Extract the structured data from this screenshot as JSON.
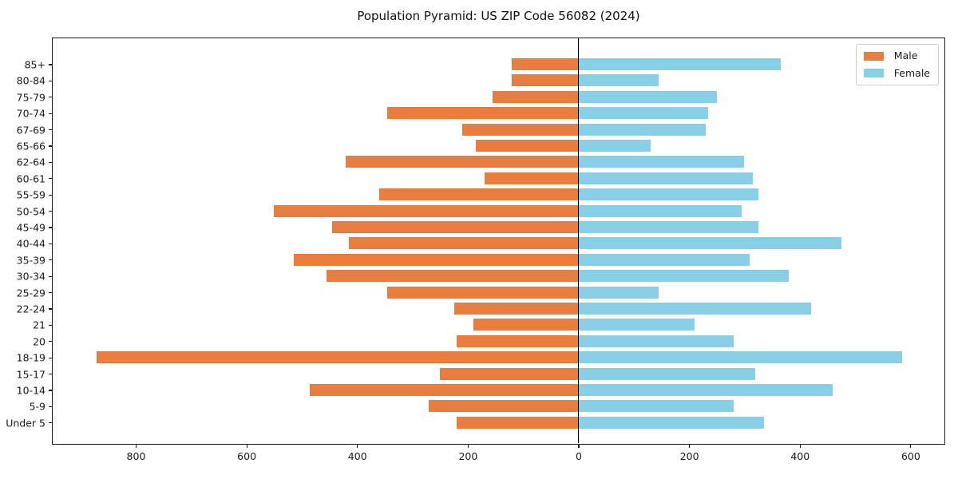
{
  "window": {
    "title": "Population Pyramid: US ZIP Code 56082 (2024)"
  },
  "colors": {
    "male": "#E87D3E",
    "female": "#89CFE8",
    "spine": "#1a1a1a",
    "zero_line": "#000000",
    "background": "#ffffff",
    "legend_border": "#cccccc"
  },
  "legend": {
    "male_label": "Male",
    "female_label": "Female"
  },
  "chart_data": {
    "type": "bar",
    "subtype": "population-pyramid",
    "title": "Population Pyramid: US ZIP Code 56082 (2024)",
    "orientation": "horizontal",
    "xlabel": "",
    "ylabel": "",
    "grid": false,
    "zero_line": true,
    "legend_position": "upper-right",
    "male_plotted_as": "negative-left",
    "categories_top_to_bottom": [
      "85+",
      "80-84",
      "75-79",
      "70-74",
      "67-69",
      "65-66",
      "62-64",
      "60-61",
      "55-59",
      "50-54",
      "45-49",
      "40-44",
      "35-39",
      "30-34",
      "25-29",
      "22-24",
      "21",
      "20",
      "18-19",
      "15-17",
      "10-14",
      "5-9",
      "Under 5"
    ],
    "series": [
      {
        "name": "Male",
        "side": "left",
        "color": "#E87D3E",
        "values": [
          120,
          120,
          155,
          345,
          210,
          185,
          420,
          170,
          360,
          550,
          445,
          415,
          515,
          455,
          345,
          225,
          190,
          220,
          870,
          250,
          485,
          270,
          220
        ]
      },
      {
        "name": "Female",
        "side": "right",
        "color": "#89CFE8",
        "values": [
          365,
          145,
          250,
          235,
          230,
          130,
          300,
          315,
          325,
          295,
          325,
          475,
          310,
          380,
          145,
          420,
          210,
          280,
          585,
          320,
          460,
          280,
          335
        ]
      }
    ],
    "xlim": [
      -950,
      660
    ],
    "x_ticks": [
      {
        "value": -800,
        "label": "800"
      },
      {
        "value": -600,
        "label": "600"
      },
      {
        "value": -400,
        "label": "400"
      },
      {
        "value": -200,
        "label": "200"
      },
      {
        "value": 0,
        "label": "0"
      },
      {
        "value": 200,
        "label": "200"
      },
      {
        "value": 400,
        "label": "400"
      },
      {
        "value": 600,
        "label": "600"
      }
    ]
  }
}
